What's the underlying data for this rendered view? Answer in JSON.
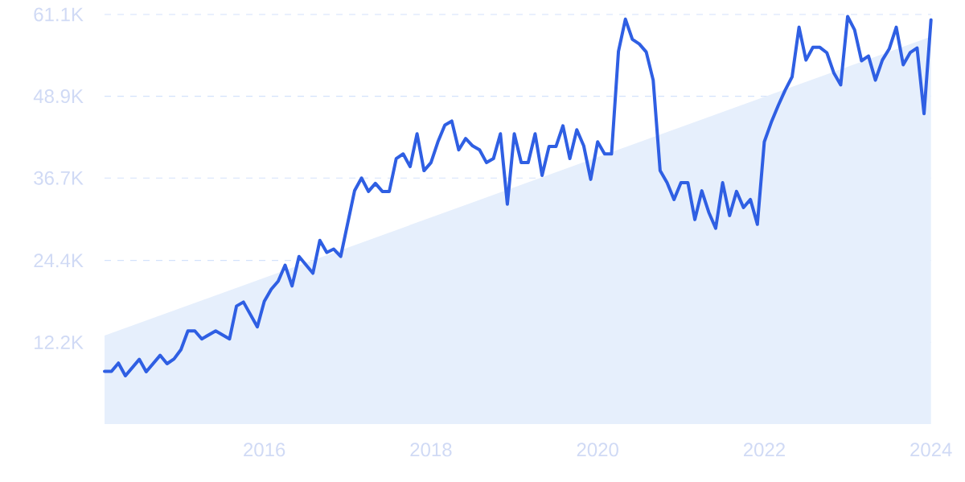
{
  "chart_data": {
    "type": "line",
    "xlim": [
      "2014-02",
      "2024-01"
    ],
    "ylim": [
      0,
      61100
    ],
    "xticks": [
      "2016",
      "2018",
      "2020",
      "2022",
      "2024"
    ],
    "yticks": [
      {
        "value": 12200,
        "label": "12.2K"
      },
      {
        "value": 24400,
        "label": "24.4K"
      },
      {
        "value": 36700,
        "label": "36.7K"
      },
      {
        "value": 48900,
        "label": "48.9K"
      },
      {
        "value": 61100,
        "label": "61.1K"
      }
    ],
    "grid": "y",
    "series": [
      {
        "type": "area",
        "color": "#e6effc",
        "x": [
          "2014-02",
          "2024-01"
        ],
        "values": [
          13200,
          57800
        ]
      },
      {
        "color": "#2f5fe3",
        "x": [
          "2014-02",
          "2014-03",
          "2014-04",
          "2014-05",
          "2014-07",
          "2014-08",
          "2014-10",
          "2014-11",
          "2014-12",
          "2015-01",
          "2015-02",
          "2015-03",
          "2015-04",
          "2015-06",
          "2015-08",
          "2015-09",
          "2015-10",
          "2015-12",
          "2016-01",
          "2016-02",
          "2016-03",
          "2016-04",
          "2016-05",
          "2016-06",
          "2016-08",
          "2016-09",
          "2016-10",
          "2016-11",
          "2016-12",
          "2017-02",
          "2017-03",
          "2017-04",
          "2017-05",
          "2017-06",
          "2017-07",
          "2017-08",
          "2017-09",
          "2017-10",
          "2017-11",
          "2017-12",
          "2018-01",
          "2018-02",
          "2018-03",
          "2018-04",
          "2018-05",
          "2018-06",
          "2018-07",
          "2018-08",
          "2018-09",
          "2018-10",
          "2018-11",
          "2018-12",
          "2019-01",
          "2019-02",
          "2019-03",
          "2019-04",
          "2019-05",
          "2019-06",
          "2019-07",
          "2019-08",
          "2019-09",
          "2019-10",
          "2019-11",
          "2019-12",
          "2020-01",
          "2020-02",
          "2020-03",
          "2020-04",
          "2020-05",
          "2020-06",
          "2020-07",
          "2020-08",
          "2020-09",
          "2020-10",
          "2020-11",
          "2020-12",
          "2021-01",
          "2021-02",
          "2021-03",
          "2021-04",
          "2021-05",
          "2021-06",
          "2021-07",
          "2021-08",
          "2021-09",
          "2021-10",
          "2021-11",
          "2021-12",
          "2022-01",
          "2022-02",
          "2022-03",
          "2022-04",
          "2022-05",
          "2022-06",
          "2022-07",
          "2022-08",
          "2022-09",
          "2022-10",
          "2022-11",
          "2022-12",
          "2023-01",
          "2023-02",
          "2023-03",
          "2023-04",
          "2023-05",
          "2023-06",
          "2023-07",
          "2023-08",
          "2023-09",
          "2023-10",
          "2023-11",
          "2023-12",
          "2024-01"
        ],
        "values": [
          7850,
          7850,
          9100,
          7200,
          9650,
          7800,
          10250,
          9000,
          9700,
          11100,
          13900,
          13900,
          12700,
          13900,
          12700,
          17600,
          18200,
          14500,
          18300,
          20100,
          21300,
          23700,
          20600,
          25000,
          22500,
          27400,
          25600,
          26100,
          25000,
          34800,
          36700,
          34700,
          35900,
          34700,
          34700,
          39600,
          40300,
          38400,
          43300,
          37800,
          39000,
          42100,
          44600,
          45200,
          40900,
          42600,
          41500,
          40900,
          39000,
          39600,
          43300,
          32800,
          43300,
          39000,
          39000,
          43300,
          37100,
          41400,
          41400,
          44500,
          39600,
          43900,
          41500,
          36500,
          42100,
          40300,
          40300,
          55600,
          60400,
          57400,
          56700,
          55500,
          51300,
          37800,
          36000,
          33500,
          36000,
          36000,
          30500,
          34800,
          31600,
          29200,
          36000,
          31100,
          34700,
          32300,
          33500,
          29800,
          42100,
          45000,
          47500,
          49800,
          51800,
          59200,
          54300,
          56200,
          56200,
          55400,
          52400,
          50600,
          60800,
          58800,
          54200,
          54900,
          51300,
          54300,
          56000,
          59200,
          53600,
          55400,
          56100,
          46300,
          60300
        ]
      }
    ]
  }
}
